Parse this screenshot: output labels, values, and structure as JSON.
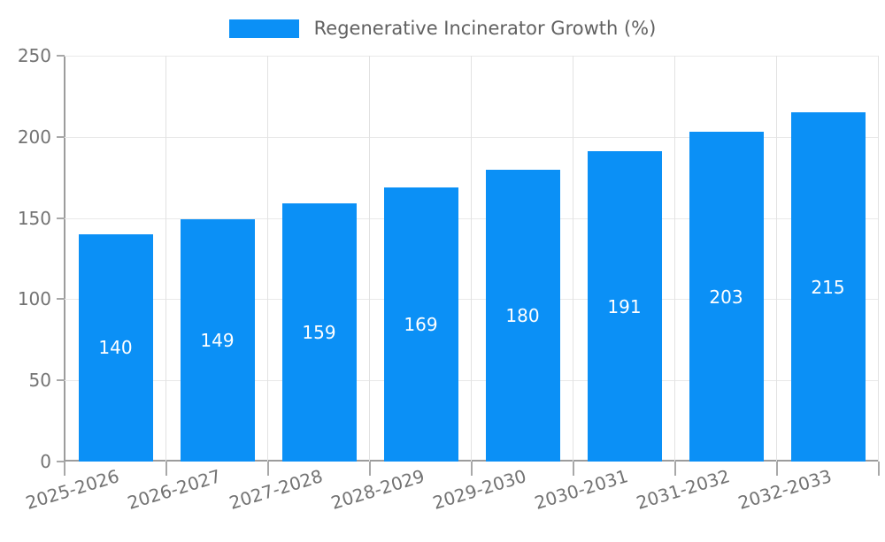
{
  "chart_data": {
    "type": "bar",
    "title": "",
    "legend": "Regenerative Incinerator Growth (%)",
    "legend_position": "top-center",
    "categories": [
      "2025-2026",
      "2026-2027",
      "2027-2028",
      "2028-2029",
      "2029-2030",
      "2030-2031",
      "2031-2032",
      "2032-2033"
    ],
    "values": [
      140,
      149,
      159,
      169,
      180,
      191,
      203,
      215
    ],
    "xlabel": "",
    "ylabel": "",
    "ylim": [
      0,
      250
    ],
    "yticks": [
      0,
      50,
      100,
      150,
      200,
      250
    ],
    "grid": true,
    "bar_color": "#0b90f6",
    "value_label_color": "#ffffff",
    "tick_label_color": "#737373",
    "legend_text_color": "#616161"
  }
}
